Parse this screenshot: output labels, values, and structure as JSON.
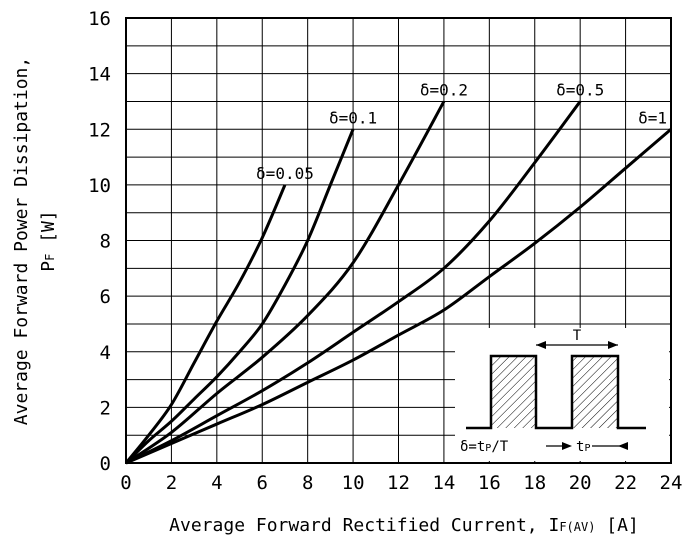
{
  "chart_data": {
    "type": "line",
    "xlabel_main": "Average Forward Rectified Current,",
    "xlabel_symbol": "I",
    "xlabel_sub": "F(AV)",
    "xlabel_unit": "[A]",
    "ylabel_line1": "Average Forward Power Dissipation,",
    "ylabel_symbol": "P",
    "ylabel_sub": "F",
    "ylabel_unit": "[W]",
    "xlim": [
      0,
      24
    ],
    "ylim": [
      0,
      16
    ],
    "xticks": [
      0,
      2,
      4,
      6,
      8,
      10,
      12,
      14,
      16,
      18,
      20,
      22,
      24
    ],
    "yticks": [
      0,
      2,
      4,
      6,
      8,
      10,
      12,
      14,
      16
    ],
    "grid": true,
    "series": [
      {
        "name": "δ=0.05",
        "x": [
          0,
          1,
          2,
          3,
          4,
          5,
          6,
          7
        ],
        "y": [
          0,
          1.0,
          2.1,
          3.6,
          5.1,
          6.5,
          8.1,
          10.0
        ]
      },
      {
        "name": "δ=0.1",
        "x": [
          0,
          1,
          2,
          3,
          4,
          5,
          6,
          7,
          8,
          9,
          10
        ],
        "y": [
          0,
          0.8,
          1.5,
          2.3,
          3.1,
          4.0,
          5.0,
          6.4,
          8.0,
          10.0,
          12.0
        ]
      },
      {
        "name": "δ=0.2",
        "x": [
          0,
          2,
          4,
          6,
          8,
          10,
          12,
          14
        ],
        "y": [
          0,
          1.1,
          2.5,
          3.8,
          5.3,
          7.2,
          10.0,
          13.0
        ]
      },
      {
        "name": "δ=0.5",
        "x": [
          0,
          2,
          4,
          6,
          8,
          10,
          12,
          14,
          16,
          18,
          20
        ],
        "y": [
          0,
          0.8,
          1.7,
          2.6,
          3.6,
          4.7,
          5.8,
          7.0,
          8.7,
          10.8,
          13.0
        ]
      },
      {
        "name": "δ=1",
        "x": [
          0,
          2,
          4,
          6,
          8,
          10,
          12,
          14,
          16,
          18,
          20,
          22,
          24
        ],
        "y": [
          0,
          0.7,
          1.4,
          2.1,
          2.9,
          3.7,
          4.6,
          5.5,
          6.7,
          7.9,
          9.2,
          10.6,
          12.0
        ]
      }
    ],
    "inset": {
      "period_label": "T",
      "duty_label_left": "δ=t",
      "duty_label_sub": "P",
      "duty_label_right": "/T",
      "pulse_label": "t",
      "pulse_label_sub": "P"
    }
  }
}
